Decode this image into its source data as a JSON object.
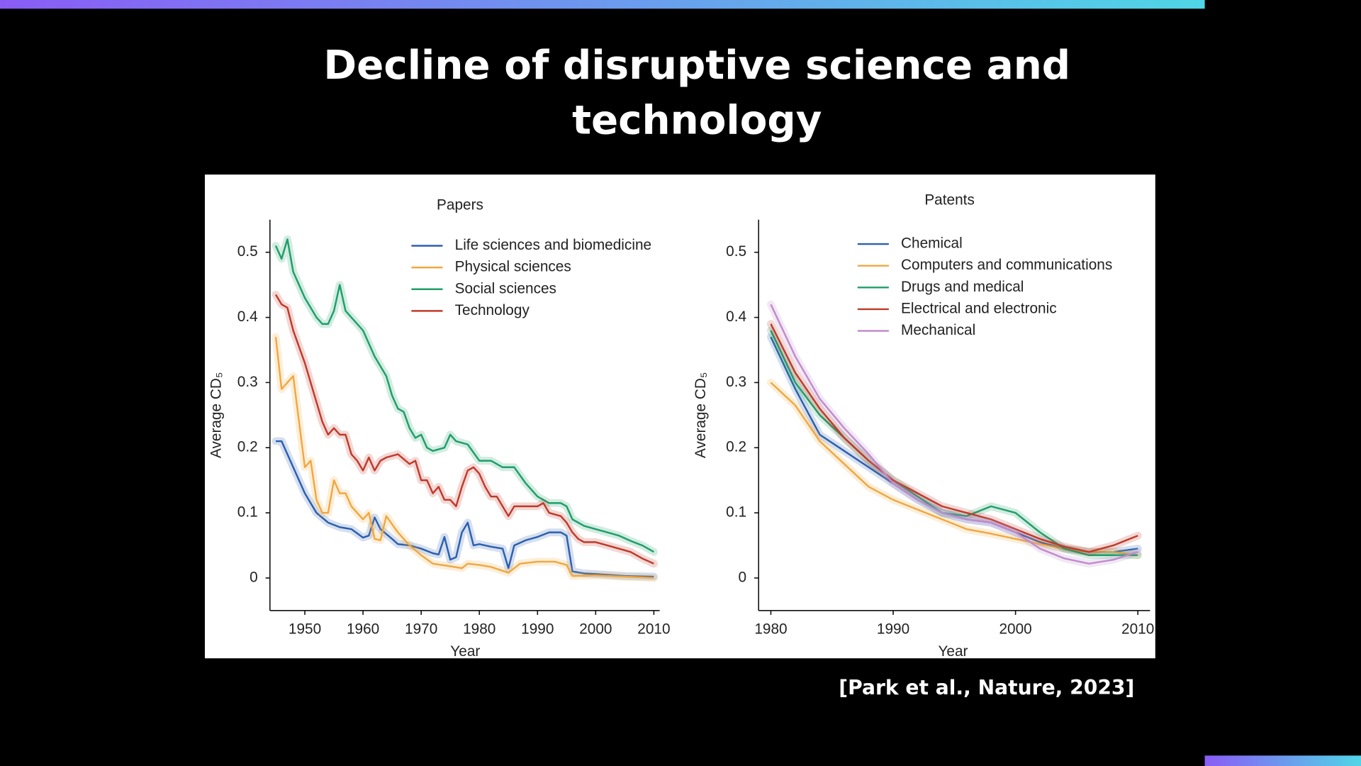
{
  "slide": {
    "title_lines": [
      "Decline of disruptive science and",
      "technology"
    ],
    "citation": "[Park et al., Nature, 2023]"
  },
  "chart_data": [
    {
      "type": "line",
      "title": "Papers",
      "xlabel": "Year",
      "ylabel": "Average CD₅",
      "xlim": [
        1944,
        2011
      ],
      "ylim": [
        -0.05,
        0.55
      ],
      "xticks": [
        1950,
        1960,
        1970,
        1980,
        1990,
        2000,
        2010
      ],
      "yticks": [
        0,
        0.1,
        0.2,
        0.3,
        0.4,
        0.5
      ],
      "series": [
        {
          "name": "Life sciences and biomedicine",
          "color": "#2b5fb0",
          "x": [
            1945,
            1946,
            1948,
            1950,
            1952,
            1954,
            1956,
            1958,
            1960,
            1961,
            1962,
            1963,
            1965,
            1966,
            1968,
            1970,
            1972,
            1973,
            1974,
            1975,
            1976,
            1977,
            1978,
            1979,
            1980,
            1982,
            1984,
            1985,
            1986,
            1988,
            1990,
            1992,
            1994,
            1995,
            1996,
            1998,
            2000,
            2005,
            2010
          ],
          "values": [
            0.21,
            0.21,
            0.17,
            0.13,
            0.1,
            0.085,
            0.078,
            0.075,
            0.062,
            0.065,
            0.093,
            0.075,
            0.06,
            0.052,
            0.05,
            0.045,
            0.038,
            0.036,
            0.063,
            0.028,
            0.032,
            0.07,
            0.085,
            0.05,
            0.052,
            0.048,
            0.045,
            0.015,
            0.05,
            0.058,
            0.063,
            0.07,
            0.07,
            0.065,
            0.01,
            0.007,
            0.006,
            0.003,
            0.002
          ]
        },
        {
          "name": "Physical sciences",
          "color": "#f0a840",
          "x": [
            1945,
            1946,
            1948,
            1949,
            1950,
            1951,
            1952,
            1953,
            1954,
            1955,
            1956,
            1957,
            1958,
            1960,
            1961,
            1962,
            1963,
            1964,
            1966,
            1968,
            1970,
            1972,
            1975,
            1977,
            1978,
            1980,
            1982,
            1985,
            1987,
            1990,
            1993,
            1995,
            1996,
            2000,
            2005,
            2010
          ],
          "values": [
            0.37,
            0.29,
            0.31,
            0.24,
            0.17,
            0.18,
            0.12,
            0.1,
            0.1,
            0.15,
            0.13,
            0.13,
            0.11,
            0.09,
            0.1,
            0.06,
            0.058,
            0.095,
            0.07,
            0.05,
            0.035,
            0.022,
            0.018,
            0.015,
            0.022,
            0.02,
            0.017,
            0.008,
            0.022,
            0.025,
            0.025,
            0.02,
            0.003,
            0.004,
            0.002,
            0
          ]
        },
        {
          "name": "Social sciences",
          "color": "#1f9e6a",
          "x": [
            1945,
            1946,
            1947,
            1948,
            1950,
            1952,
            1953,
            1954,
            1955,
            1956,
            1957,
            1958,
            1960,
            1962,
            1964,
            1965,
            1966,
            1967,
            1968,
            1969,
            1970,
            1971,
            1972,
            1974,
            1975,
            1976,
            1978,
            1980,
            1982,
            1984,
            1986,
            1988,
            1990,
            1992,
            1994,
            1995,
            1996,
            1998,
            2000,
            2002,
            2004,
            2006,
            2008,
            2010
          ],
          "values": [
            0.51,
            0.49,
            0.52,
            0.47,
            0.43,
            0.4,
            0.39,
            0.39,
            0.41,
            0.45,
            0.41,
            0.4,
            0.38,
            0.34,
            0.31,
            0.28,
            0.26,
            0.255,
            0.23,
            0.215,
            0.22,
            0.2,
            0.195,
            0.2,
            0.22,
            0.21,
            0.205,
            0.18,
            0.18,
            0.17,
            0.17,
            0.145,
            0.125,
            0.115,
            0.115,
            0.11,
            0.09,
            0.08,
            0.075,
            0.07,
            0.065,
            0.057,
            0.05,
            0.04
          ]
        },
        {
          "name": "Technology",
          "color": "#c03a2b",
          "x": [
            1945,
            1946,
            1947,
            1948,
            1950,
            1952,
            1953,
            1954,
            1955,
            1956,
            1957,
            1958,
            1959,
            1960,
            1961,
            1962,
            1963,
            1964,
            1966,
            1968,
            1969,
            1970,
            1971,
            1972,
            1973,
            1974,
            1975,
            1976,
            1977,
            1978,
            1979,
            1980,
            1981,
            1982,
            1983,
            1984,
            1985,
            1986,
            1988,
            1990,
            1991,
            1992,
            1994,
            1995,
            1996,
            1997,
            1998,
            2000,
            2002,
            2004,
            2006,
            2008,
            2010
          ],
          "values": [
            0.435,
            0.42,
            0.415,
            0.38,
            0.33,
            0.27,
            0.24,
            0.22,
            0.23,
            0.22,
            0.22,
            0.19,
            0.18,
            0.165,
            0.185,
            0.165,
            0.18,
            0.185,
            0.19,
            0.175,
            0.18,
            0.15,
            0.15,
            0.13,
            0.14,
            0.12,
            0.12,
            0.11,
            0.14,
            0.165,
            0.17,
            0.16,
            0.14,
            0.125,
            0.125,
            0.11,
            0.095,
            0.11,
            0.11,
            0.11,
            0.115,
            0.1,
            0.095,
            0.085,
            0.07,
            0.06,
            0.055,
            0.055,
            0.05,
            0.045,
            0.04,
            0.03,
            0.022
          ]
        }
      ]
    },
    {
      "type": "line",
      "title": "Patents",
      "xlabel": "Year",
      "ylabel": "Average CD₅",
      "xlim": [
        1979,
        2011
      ],
      "ylim": [
        -0.05,
        0.55
      ],
      "xticks": [
        1980,
        1990,
        2000,
        2010
      ],
      "yticks": [
        0,
        0.1,
        0.2,
        0.3,
        0.4,
        0.5
      ],
      "x": [
        1980,
        1982,
        1984,
        1986,
        1988,
        1990,
        1992,
        1994,
        1996,
        1998,
        2000,
        2002,
        2004,
        2006,
        2008,
        2010
      ],
      "series": [
        {
          "name": "Chemical",
          "color": "#2b5fb0",
          "values": [
            0.37,
            0.29,
            0.22,
            0.195,
            0.17,
            0.145,
            0.12,
            0.1,
            0.09,
            0.085,
            0.07,
            0.055,
            0.045,
            0.04,
            0.04,
            0.045
          ]
        },
        {
          "name": "Computers and communications",
          "color": "#f0a840",
          "values": [
            0.3,
            0.265,
            0.21,
            0.175,
            0.14,
            0.12,
            0.105,
            0.09,
            0.075,
            0.068,
            0.06,
            0.052,
            0.045,
            0.04,
            0.04,
            0.035
          ]
        },
        {
          "name": "Drugs and medical",
          "color": "#1f9e6a",
          "values": [
            0.38,
            0.3,
            0.25,
            0.215,
            0.18,
            0.15,
            0.125,
            0.1,
            0.095,
            0.11,
            0.1,
            0.07,
            0.045,
            0.035,
            0.035,
            0.035
          ]
        },
        {
          "name": "Electrical and electronic",
          "color": "#c03a2b",
          "values": [
            0.39,
            0.315,
            0.26,
            0.215,
            0.18,
            0.15,
            0.13,
            0.11,
            0.1,
            0.09,
            0.075,
            0.06,
            0.048,
            0.04,
            0.05,
            0.065
          ]
        },
        {
          "name": "Mechanical",
          "color": "#c08ccc",
          "values": [
            0.42,
            0.34,
            0.275,
            0.23,
            0.19,
            0.145,
            0.12,
            0.1,
            0.09,
            0.085,
            0.07,
            0.045,
            0.03,
            0.022,
            0.028,
            0.04
          ]
        }
      ]
    }
  ]
}
